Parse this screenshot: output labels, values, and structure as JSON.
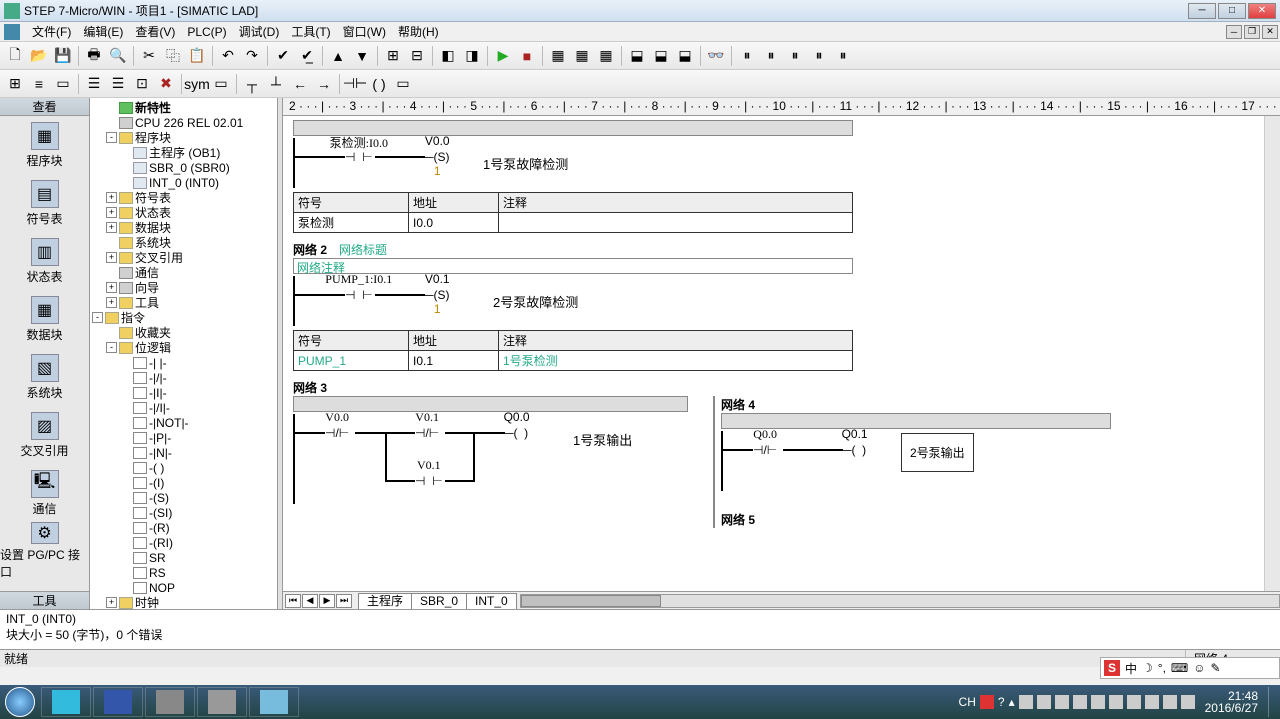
{
  "title": "STEP 7-Micro/WIN - 项目1 - [SIMATIC LAD]",
  "menus": [
    "文件(F)",
    "编辑(E)",
    "查看(V)",
    "PLC(P)",
    "调试(D)",
    "工具(T)",
    "窗口(W)",
    "帮助(H)"
  ],
  "nav": {
    "title": "查看",
    "items": [
      "程序块",
      "符号表",
      "状态表",
      "数据块",
      "系统块",
      "交叉引用",
      "通信",
      "设置 PG/PC 接口"
    ],
    "toolLabel": "工具"
  },
  "tree": [
    {
      "indent": 0,
      "exp": "",
      "icon": "ti-green",
      "label": "新特性",
      "bold": true
    },
    {
      "indent": 0,
      "exp": "",
      "icon": "ti-gear",
      "label": "CPU 226 REL 02.01"
    },
    {
      "indent": 0,
      "exp": "-",
      "icon": "ti-folder",
      "label": "程序块"
    },
    {
      "indent": 1,
      "exp": "",
      "icon": "ti-doc",
      "label": "主程序 (OB1)"
    },
    {
      "indent": 1,
      "exp": "",
      "icon": "ti-doc",
      "label": "SBR_0 (SBR0)"
    },
    {
      "indent": 1,
      "exp": "",
      "icon": "ti-doc",
      "label": "INT_0 (INT0)"
    },
    {
      "indent": 0,
      "exp": "+",
      "icon": "ti-folder",
      "label": "符号表"
    },
    {
      "indent": 0,
      "exp": "+",
      "icon": "ti-folder",
      "label": "状态表"
    },
    {
      "indent": 0,
      "exp": "+",
      "icon": "ti-folder",
      "label": "数据块"
    },
    {
      "indent": 0,
      "exp": "",
      "icon": "ti-folder",
      "label": "系统块"
    },
    {
      "indent": 0,
      "exp": "+",
      "icon": "ti-folder",
      "label": "交叉引用"
    },
    {
      "indent": 0,
      "exp": "",
      "icon": "ti-gear",
      "label": "通信"
    },
    {
      "indent": 0,
      "exp": "+",
      "icon": "ti-gear",
      "label": "向导"
    },
    {
      "indent": 0,
      "exp": "+",
      "icon": "ti-folder",
      "label": "工具"
    },
    {
      "indent": -1,
      "exp": "-",
      "icon": "ti-folder",
      "label": "指令"
    },
    {
      "indent": 0,
      "exp": "",
      "icon": "ti-folder",
      "label": "收藏夹"
    },
    {
      "indent": 0,
      "exp": "-",
      "icon": "ti-folder",
      "label": "位逻辑"
    },
    {
      "indent": 1,
      "exp": "",
      "icon": "ti-lad",
      "label": "-| |-"
    },
    {
      "indent": 1,
      "exp": "",
      "icon": "ti-lad",
      "label": "-|/|-"
    },
    {
      "indent": 1,
      "exp": "",
      "icon": "ti-lad",
      "label": "-|I|-"
    },
    {
      "indent": 1,
      "exp": "",
      "icon": "ti-lad",
      "label": "-|/I|-"
    },
    {
      "indent": 1,
      "exp": "",
      "icon": "ti-lad",
      "label": "-|NOT|-"
    },
    {
      "indent": 1,
      "exp": "",
      "icon": "ti-lad",
      "label": "-|P|-"
    },
    {
      "indent": 1,
      "exp": "",
      "icon": "ti-lad",
      "label": "-|N|-"
    },
    {
      "indent": 1,
      "exp": "",
      "icon": "ti-lad",
      "label": "-( )"
    },
    {
      "indent": 1,
      "exp": "",
      "icon": "ti-lad",
      "label": "-(I)"
    },
    {
      "indent": 1,
      "exp": "",
      "icon": "ti-lad",
      "label": "-(S)"
    },
    {
      "indent": 1,
      "exp": "",
      "icon": "ti-lad",
      "label": "-(SI)"
    },
    {
      "indent": 1,
      "exp": "",
      "icon": "ti-lad",
      "label": "-(R)"
    },
    {
      "indent": 1,
      "exp": "",
      "icon": "ti-lad",
      "label": "-(RI)"
    },
    {
      "indent": 1,
      "exp": "",
      "icon": "ti-lad",
      "label": "SR"
    },
    {
      "indent": 1,
      "exp": "",
      "icon": "ti-lad",
      "label": "RS"
    },
    {
      "indent": 1,
      "exp": "",
      "icon": "ti-lad",
      "label": "NOP"
    },
    {
      "indent": 0,
      "exp": "+",
      "icon": "ti-folder",
      "label": "时钟"
    }
  ],
  "ruler": "2 · · · | · · · 3 · · · | · · · 4 · · · | · · · 5 · · · | · · · 6 · · · | · · · 7 · · · | · · · 8 · · · | · · · 9 · · · | · · · 10 · · · | · · · 11 · · · | · · · 12 · · · | · · · 13 · · · | · · · 14 · · · | · · · 15 · · · | · · · 16 · · · | · · · 17 · · · | · · · 18 · · · | · · · 19 · · · | · · · 20 · · · |",
  "networks": {
    "n1": {
      "contact1": "泵检测:I0.0",
      "coil": "V0.0",
      "coilType": "S",
      "coilCount": "1",
      "comment": "1号泵故障检测"
    },
    "sym1": {
      "headers": [
        "符号",
        "地址",
        "注释"
      ],
      "row": [
        "泵检测",
        "I0.0",
        ""
      ]
    },
    "n2": {
      "title": "网络 2",
      "titleHint": "网络标题",
      "commentBox": "网络注释",
      "contact1": "PUMP_1:I0.1",
      "coil": "V0.1",
      "coilType": "S",
      "coilCount": "1",
      "comment": "2号泵故障检测"
    },
    "sym2": {
      "headers": [
        "符号",
        "地址",
        "注释"
      ],
      "row": [
        "PUMP_1",
        "I0.1",
        "1号泵检测"
      ]
    },
    "n3": {
      "title": "网络 3",
      "c1": "V0.0",
      "c2": "V0.1",
      "c3": "V0.1",
      "coil": "Q0.0",
      "comment": "1号泵输出"
    },
    "n4": {
      "title": "网络 4",
      "c1": "Q0.0",
      "coil": "Q0.1",
      "comment": "2号泵输出"
    },
    "n5": {
      "title": "网络 5"
    }
  },
  "tabs": [
    "主程序",
    "SBR_0",
    "INT_0"
  ],
  "output": {
    "line1": "INT_0 (INT0)",
    "line2": "块大小 = 50 (字节)，0 个错误"
  },
  "status": {
    "ready": "就绪",
    "net": "网络 4"
  },
  "ime": {
    "label": "中"
  },
  "clock": {
    "time": "21:48",
    "date": "2016/6/27"
  },
  "trayLang": "CH",
  "colors": {
    "titlebar": "#d0e0f0",
    "greenText": "#22aa88"
  }
}
